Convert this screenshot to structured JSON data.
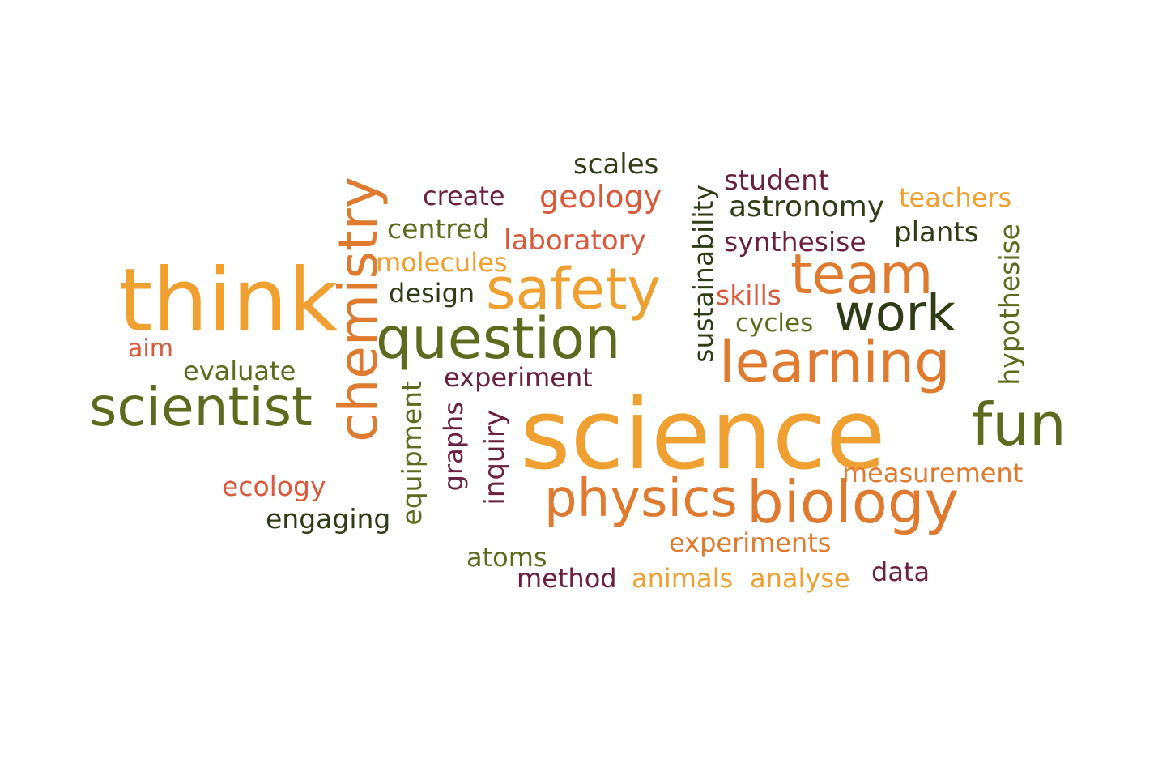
{
  "palette": {
    "gold": "#f0a030",
    "orange": "#e07a2e",
    "rust": "#d95a3a",
    "plum": "#6b2040",
    "olive": "#5d6b1e",
    "darkgreen": "#2f3d16"
  },
  "words": [
    {
      "text": "science",
      "color": "gold"
    },
    {
      "text": "think",
      "color": "gold"
    },
    {
      "text": "chemistry",
      "color": "orange"
    },
    {
      "text": "question",
      "color": "olive"
    },
    {
      "text": "safety",
      "color": "gold"
    },
    {
      "text": "team",
      "color": "orange"
    },
    {
      "text": "work",
      "color": "darkgreen"
    },
    {
      "text": "learning",
      "color": "orange"
    },
    {
      "text": "scientist",
      "color": "olive"
    },
    {
      "text": "fun",
      "color": "olive"
    },
    {
      "text": "biology",
      "color": "orange"
    },
    {
      "text": "physics",
      "color": "orange"
    },
    {
      "text": "scales",
      "color": "darkgreen"
    },
    {
      "text": "student",
      "color": "plum"
    },
    {
      "text": "create",
      "color": "plum"
    },
    {
      "text": "geology",
      "color": "rust"
    },
    {
      "text": "astronomy",
      "color": "darkgreen"
    },
    {
      "text": "teachers",
      "color": "gold"
    },
    {
      "text": "centred",
      "color": "olive"
    },
    {
      "text": "laboratory",
      "color": "rust"
    },
    {
      "text": "plants",
      "color": "darkgreen"
    },
    {
      "text": "synthesise",
      "color": "plum"
    },
    {
      "text": "molecules",
      "color": "gold"
    },
    {
      "text": "sustainability",
      "color": "darkgreen"
    },
    {
      "text": "hypothesise",
      "color": "olive"
    },
    {
      "text": "design",
      "color": "darkgreen"
    },
    {
      "text": "skills",
      "color": "rust"
    },
    {
      "text": "cycles",
      "color": "olive"
    },
    {
      "text": "aim",
      "color": "rust"
    },
    {
      "text": "evaluate",
      "color": "olive"
    },
    {
      "text": "experiment",
      "color": "plum"
    },
    {
      "text": "equipment",
      "color": "olive"
    },
    {
      "text": "graphs",
      "color": "plum"
    },
    {
      "text": "inquiry",
      "color": "plum"
    },
    {
      "text": "measurement",
      "color": "orange"
    },
    {
      "text": "ecology",
      "color": "rust"
    },
    {
      "text": "engaging",
      "color": "darkgreen"
    },
    {
      "text": "experiments",
      "color": "orange"
    },
    {
      "text": "atoms",
      "color": "olive"
    },
    {
      "text": "data",
      "color": "plum"
    },
    {
      "text": "method",
      "color": "plum"
    },
    {
      "text": "animals",
      "color": "gold"
    },
    {
      "text": "analyse",
      "color": "gold"
    }
  ]
}
